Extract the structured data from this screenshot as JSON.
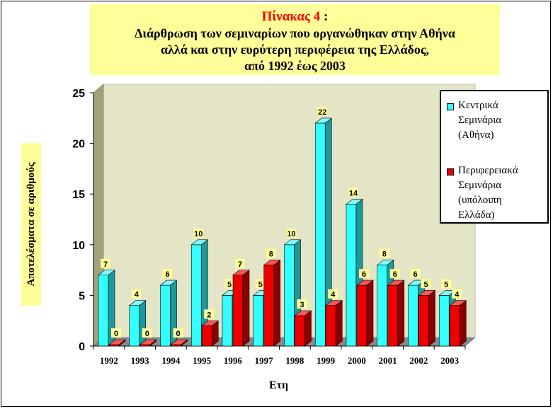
{
  "title": {
    "label": "Πίνακας 4",
    "colon": " :",
    "lines": [
      "Διάρθρωση των σεμιναρίων που οργανώθηκαν στην Αθήνα",
      "αλλά και στην ευρύτερη περιφέρεια της Ελλάδος,",
      "από 1992 έως 2003"
    ]
  },
  "chart_data": {
    "type": "bar",
    "categories": [
      "1992",
      "1993",
      "1994",
      "1995",
      "1996",
      "1997",
      "1998",
      "1999",
      "2000",
      "2001",
      "2002",
      "2003"
    ],
    "series": [
      {
        "name": "Κεντρικά Σεμινάρια (Αθήνα)",
        "values": [
          7,
          4,
          6,
          10,
          5,
          5,
          10,
          22,
          14,
          8,
          6,
          5
        ],
        "color": "#33ffff",
        "side": "#1a9a9a",
        "top": "#80ffff"
      },
      {
        "name": "Περιφερειακά Σεμινάρια (υπόλοιπη Ελλάδα)",
        "values": [
          0,
          0,
          0,
          2,
          7,
          8,
          3,
          4,
          6,
          6,
          5,
          4
        ],
        "color": "#ee0000",
        "side": "#8a0000",
        "top": "#ff5555"
      }
    ],
    "ylim": [
      0,
      25
    ],
    "yticks": [
      0,
      5,
      10,
      15,
      20,
      25
    ],
    "ylabel": "Αποτελέσματα σε αριθμούς",
    "xlabel": "Ετη",
    "legend_position": "right",
    "legend_lines": [
      [
        "Κεντρικά",
        "Σεμινάρια",
        "(Αθήνα)"
      ],
      [
        "Περιφερειακά",
        "Σεμινάρια",
        "(υπόλοιπη",
        "Ελλάδα)"
      ]
    ]
  }
}
